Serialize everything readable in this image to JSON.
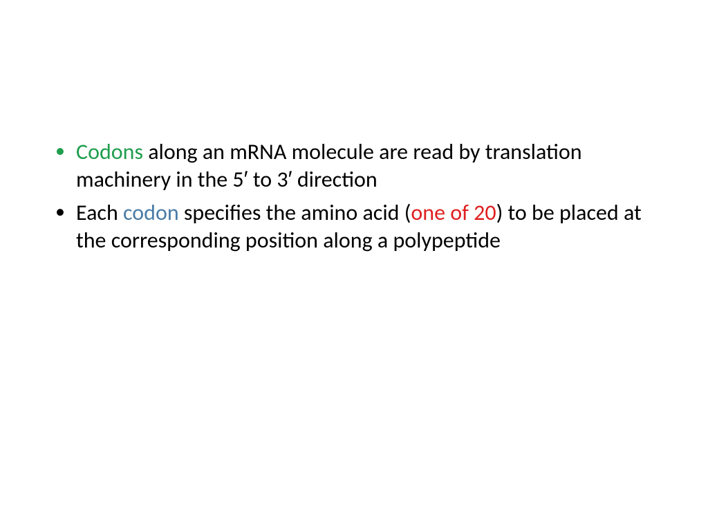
{
  "slide": {
    "background_color": "#ffffff",
    "font_family": "Calibri, 'Segoe UI', Arial, sans-serif",
    "font_size": 32,
    "line_height": 1.25,
    "colors": {
      "green": "#1f9e4e",
      "blue": "#4a7ba6",
      "red": "#e01f1f",
      "black": "#000000"
    },
    "bullets": [
      {
        "bullet_color": "green",
        "spans": [
          {
            "text": "Codons ",
            "color": "green"
          },
          {
            "text": "along an mRNA molecule are read by translation machinery in the 5′ to 3′ direction",
            "color": "black"
          }
        ]
      },
      {
        "bullet_color": "black",
        "spans": [
          {
            "text": "Each ",
            "color": "black"
          },
          {
            "text": "codon ",
            "color": "blue"
          },
          {
            "text": "specifies the amino acid (",
            "color": "black"
          },
          {
            "text": "one of 20",
            "color": "red"
          },
          {
            "text": ") to be placed at the corresponding position along a polypeptide",
            "color": "black"
          }
        ]
      }
    ]
  }
}
